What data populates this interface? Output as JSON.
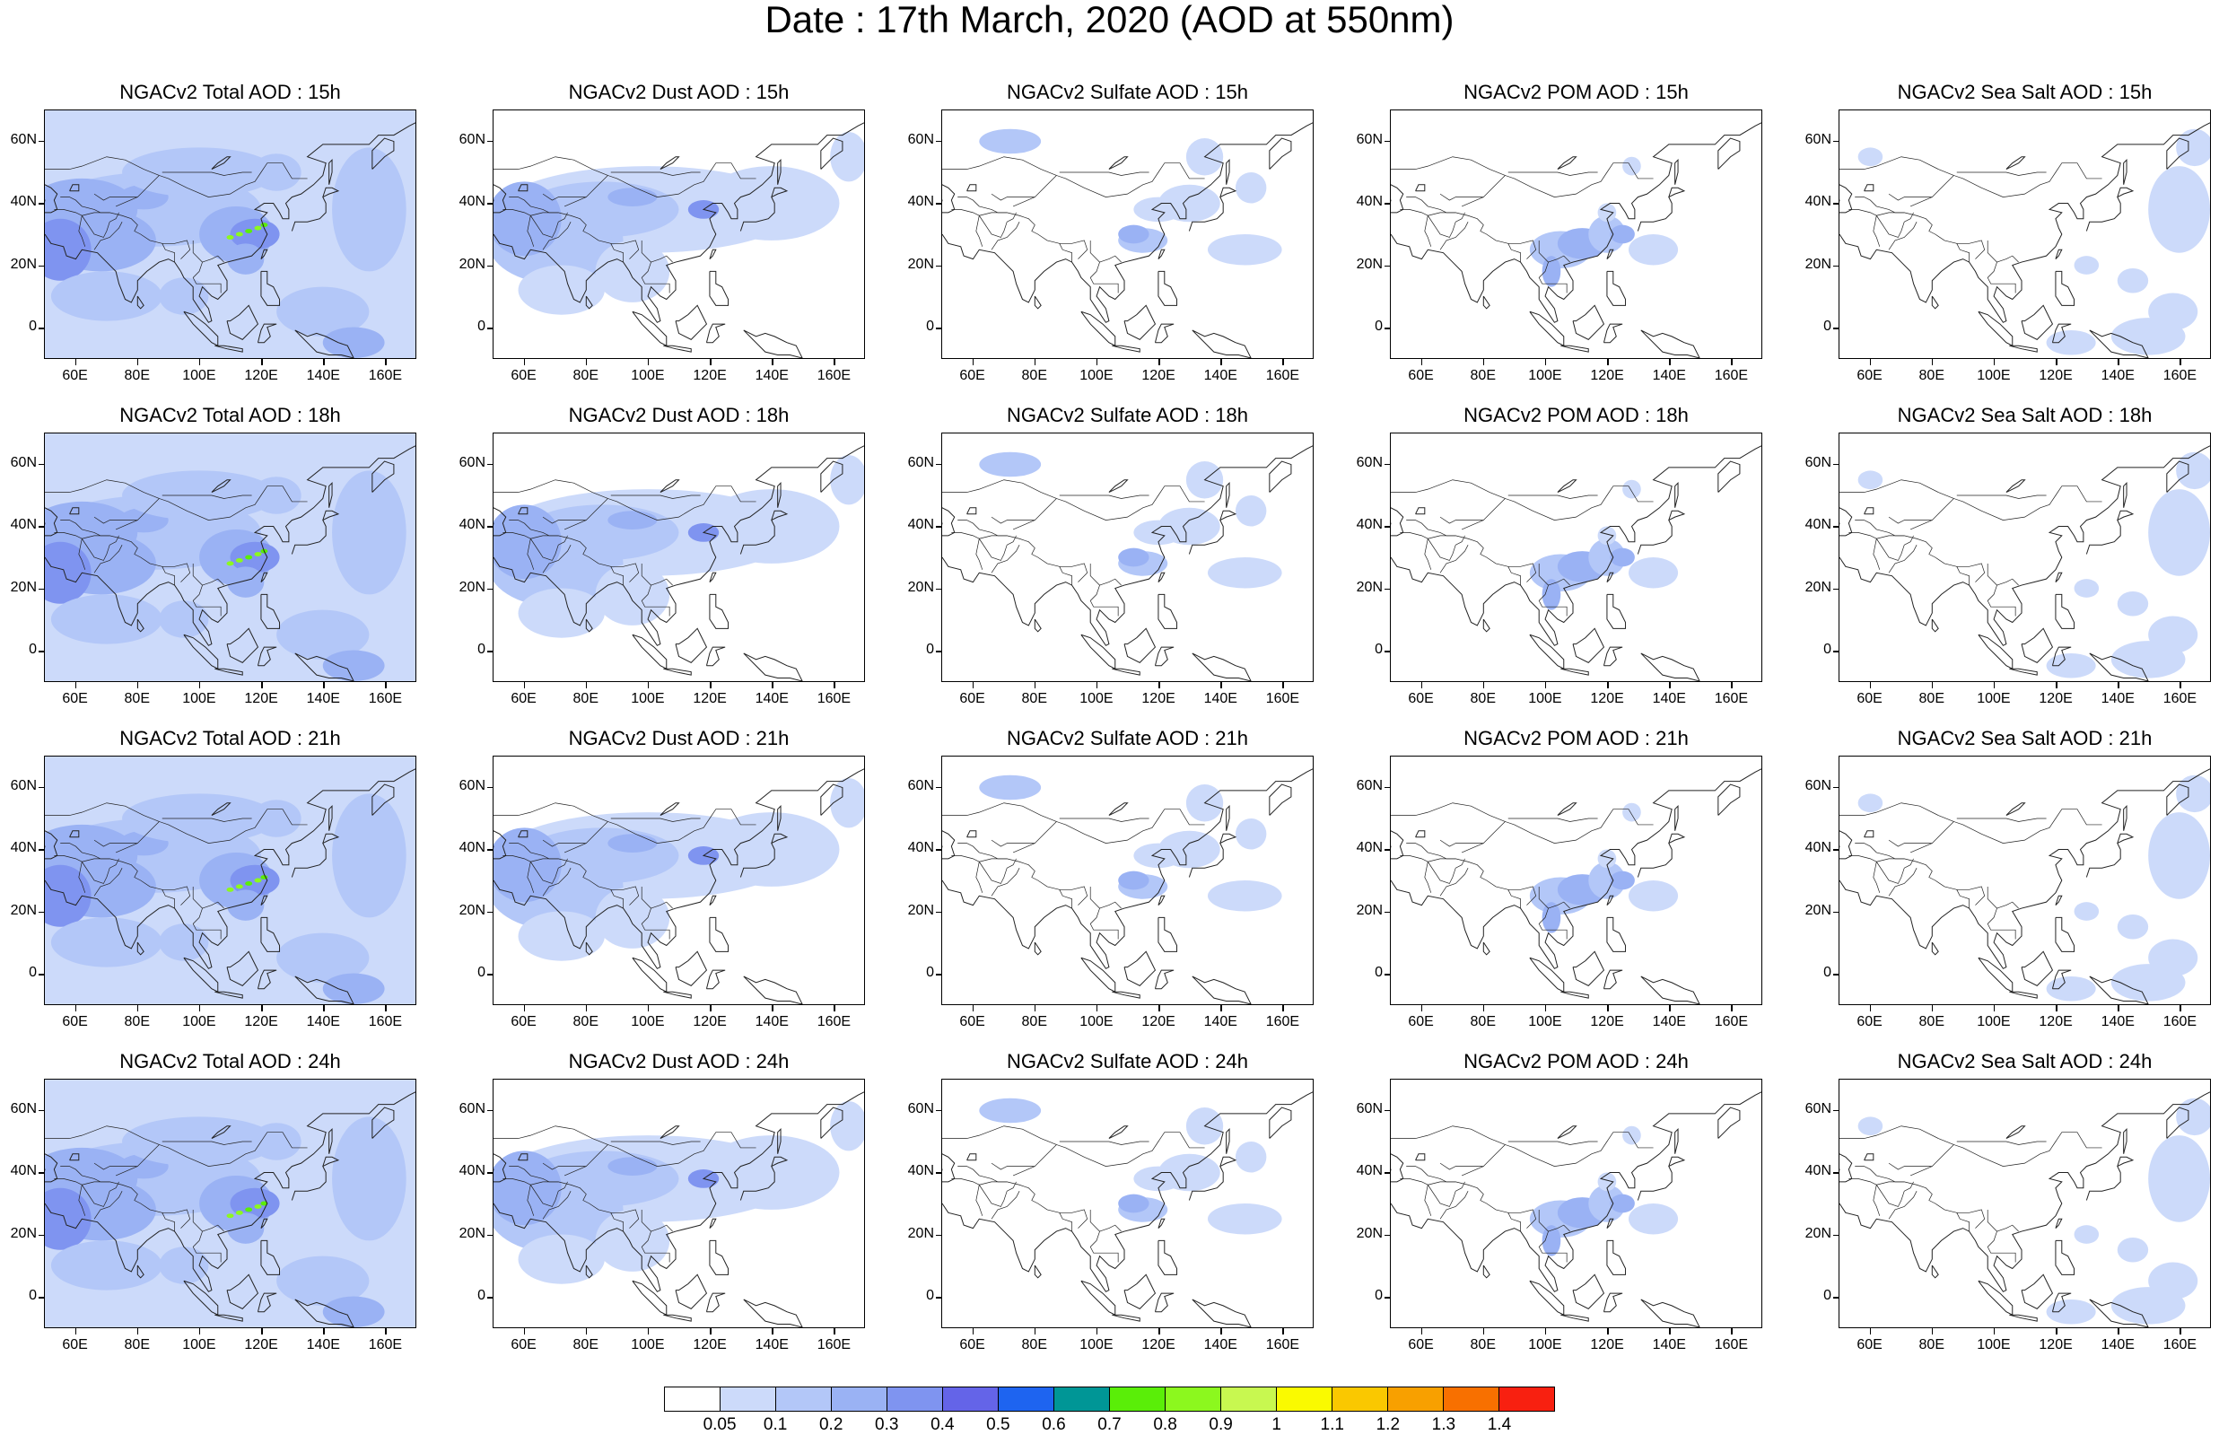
{
  "title": "Date : 17th March, 2020 (AOD at 550nm)",
  "panels": [
    {
      "title": "NGACv2 Total AOD : 15h",
      "species": "total"
    },
    {
      "title": "NGACv2 Dust AOD : 15h",
      "species": "dust"
    },
    {
      "title": "NGACv2 Sulfate AOD : 15h",
      "species": "sulfate"
    },
    {
      "title": "NGACv2 POM AOD : 15h",
      "species": "pom"
    },
    {
      "title": "NGACv2 Sea Salt AOD : 15h",
      "species": "seasalt"
    },
    {
      "title": "NGACv2 Total AOD : 18h",
      "species": "total"
    },
    {
      "title": "NGACv2 Dust AOD : 18h",
      "species": "dust"
    },
    {
      "title": "NGACv2 Sulfate AOD : 18h",
      "species": "sulfate"
    },
    {
      "title": "NGACv2 POM AOD : 18h",
      "species": "pom"
    },
    {
      "title": "NGACv2 Sea Salt AOD : 18h",
      "species": "seasalt"
    },
    {
      "title": "NGACv2 Total AOD : 21h",
      "species": "total"
    },
    {
      "title": "NGACv2 Dust AOD : 21h",
      "species": "dust"
    },
    {
      "title": "NGACv2 Sulfate AOD : 21h",
      "species": "sulfate"
    },
    {
      "title": "NGACv2 POM AOD : 21h",
      "species": "pom"
    },
    {
      "title": "NGACv2 Sea Salt AOD : 21h",
      "species": "seasalt"
    },
    {
      "title": "NGACv2 Total AOD : 24h",
      "species": "total"
    },
    {
      "title": "NGACv2 Dust AOD : 24h",
      "species": "dust"
    },
    {
      "title": "NGACv2 Sulfate AOD : 24h",
      "species": "sulfate"
    },
    {
      "title": "NGACv2 POM AOD : 24h",
      "species": "pom"
    },
    {
      "title": "NGACv2 Sea Salt  AOD : 24h",
      "species": "seasalt"
    }
  ],
  "axes": {
    "lat_labels": [
      "60N",
      "40N",
      "20N",
      "0"
    ],
    "lon_labels": [
      "60E",
      "80E",
      "100E",
      "120E",
      "140E",
      "160E"
    ],
    "lon_range": [
      50,
      170
    ],
    "lat_range": [
      -10,
      70
    ]
  },
  "colorbar": {
    "labels": [
      "0.05",
      "0.1",
      "0.2",
      "0.3",
      "0.4",
      "0.5",
      "0.6",
      "0.7",
      "0.8",
      "0.9",
      "1",
      "1.1",
      "1.2",
      "1.3",
      "1.4"
    ],
    "colors": [
      "#ffffff",
      "#ccdafa",
      "#b3c7f8",
      "#9ab2f4",
      "#7f94f0",
      "#6464e8",
      "#1e64f0",
      "#009696",
      "#5aee08",
      "#8cf81e",
      "#c8f850",
      "#fafa00",
      "#fac800",
      "#f8a000",
      "#f87000",
      "#f82010"
    ]
  }
}
